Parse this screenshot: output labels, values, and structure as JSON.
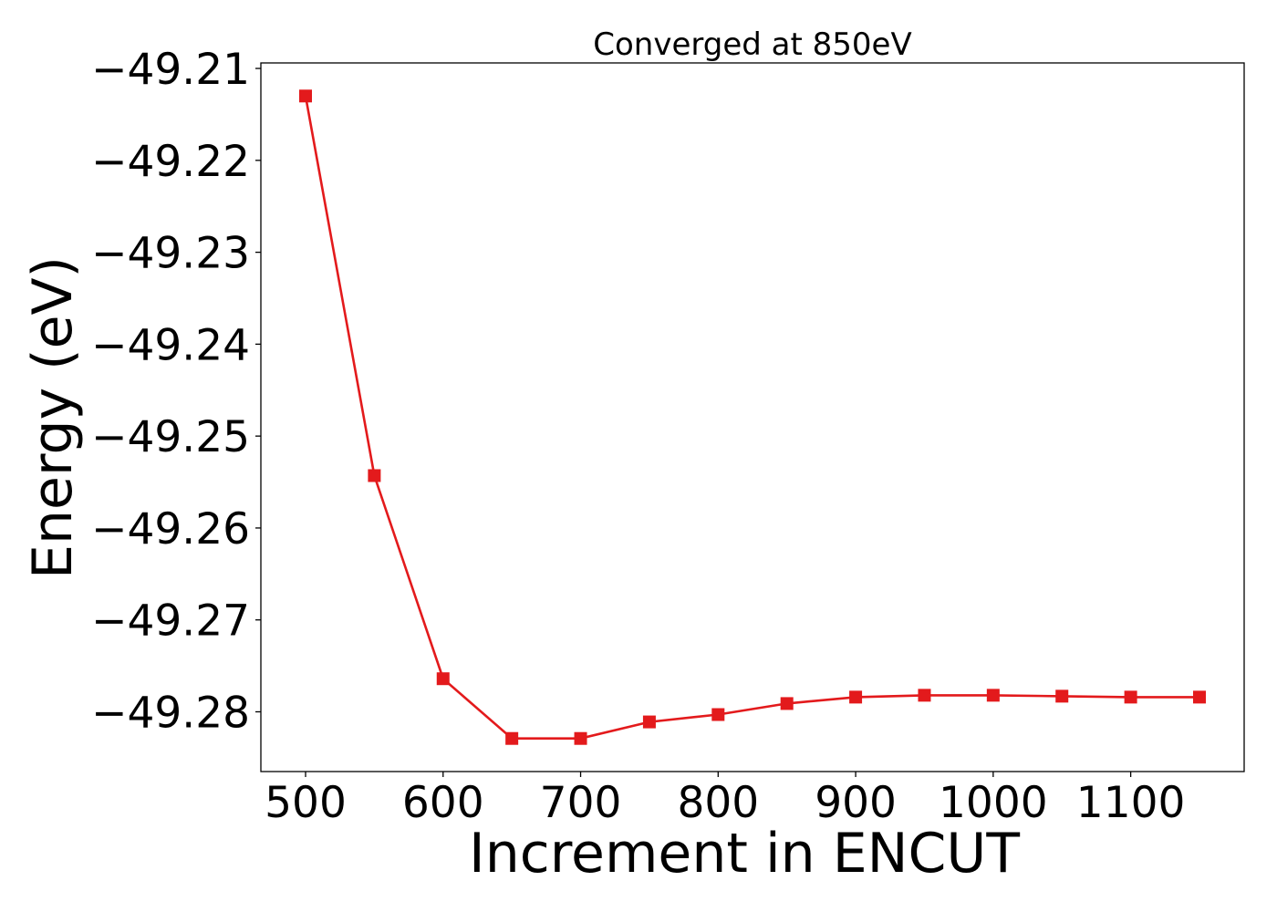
{
  "chart_data": {
    "type": "line",
    "title": "Converged at 850eV",
    "xlabel": "Increment in ENCUT",
    "ylabel": "Energy (eV)",
    "x": [
      500,
      550,
      600,
      650,
      700,
      750,
      800,
      850,
      900,
      950,
      1000,
      1050,
      1100,
      1150
    ],
    "series": [
      {
        "values": [
          -49.213,
          -49.2543,
          -49.2764,
          -49.2829,
          -49.2829,
          -49.2811,
          -49.2803,
          -49.2791,
          -49.2784,
          -49.2782,
          -49.2782,
          -49.2783,
          -49.2784,
          -49.2784
        ],
        "color": "#e31a1c",
        "marker": "square"
      }
    ],
    "xlim": [
      467.5,
      1182.5
    ],
    "ylim": [
      -49.2865,
      -49.2094
    ],
    "xticks": [
      500,
      600,
      700,
      800,
      900,
      1000,
      1100
    ],
    "yticks": [
      -49.21,
      -49.22,
      -49.23,
      -49.24,
      -49.25,
      -49.26,
      -49.27,
      -49.28
    ],
    "xtick_labels": [
      "500",
      "600",
      "700",
      "800",
      "900",
      "1000",
      "1100"
    ],
    "ytick_labels": [
      "−49.21",
      "−49.22",
      "−49.23",
      "−49.24",
      "−49.25",
      "−49.26",
      "−49.27",
      "−49.28"
    ],
    "grid": false,
    "legend": "none"
  }
}
